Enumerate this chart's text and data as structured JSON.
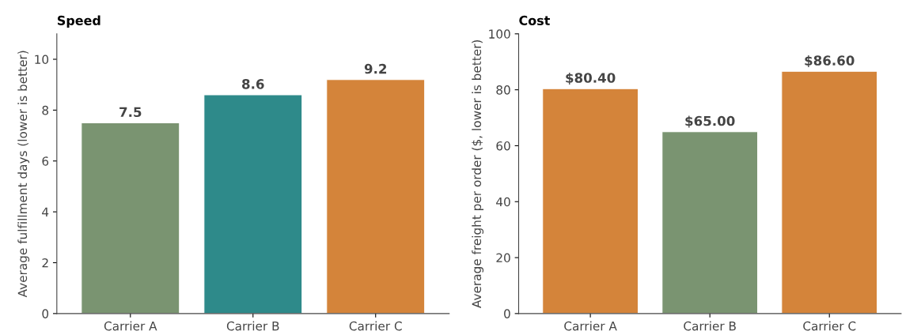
{
  "chart_data": [
    {
      "type": "bar",
      "title": "Speed",
      "categories": [
        "Carrier A",
        "Carrier B",
        "Carrier C"
      ],
      "values": [
        7.5,
        8.6,
        9.2
      ],
      "colors": [
        "#7a9471",
        "#2e8a8a",
        "#d4843a"
      ],
      "ylabel": "Average fulfillment days (lower is better)",
      "ylim": [
        0,
        11
      ],
      "yticks": [
        0,
        2,
        4,
        6,
        8,
        10
      ],
      "data_labels": true,
      "grid": false
    },
    {
      "type": "bar",
      "title": "Cost",
      "categories": [
        "Carrier A",
        "Carrier B",
        "Carrier C"
      ],
      "values": [
        80.4,
        65.0,
        86.6
      ],
      "colors": [
        "#d4843a",
        "#7a9471",
        "#d4843a"
      ],
      "ylabel": "Average freight per order ($, lower is better)",
      "ylim": [
        0,
        100
      ],
      "yticks": [
        0,
        20,
        40,
        60,
        80,
        100
      ],
      "value_labels": [
        "$80.40",
        "$65.00",
        "$86.60"
      ],
      "grid": false
    }
  ]
}
